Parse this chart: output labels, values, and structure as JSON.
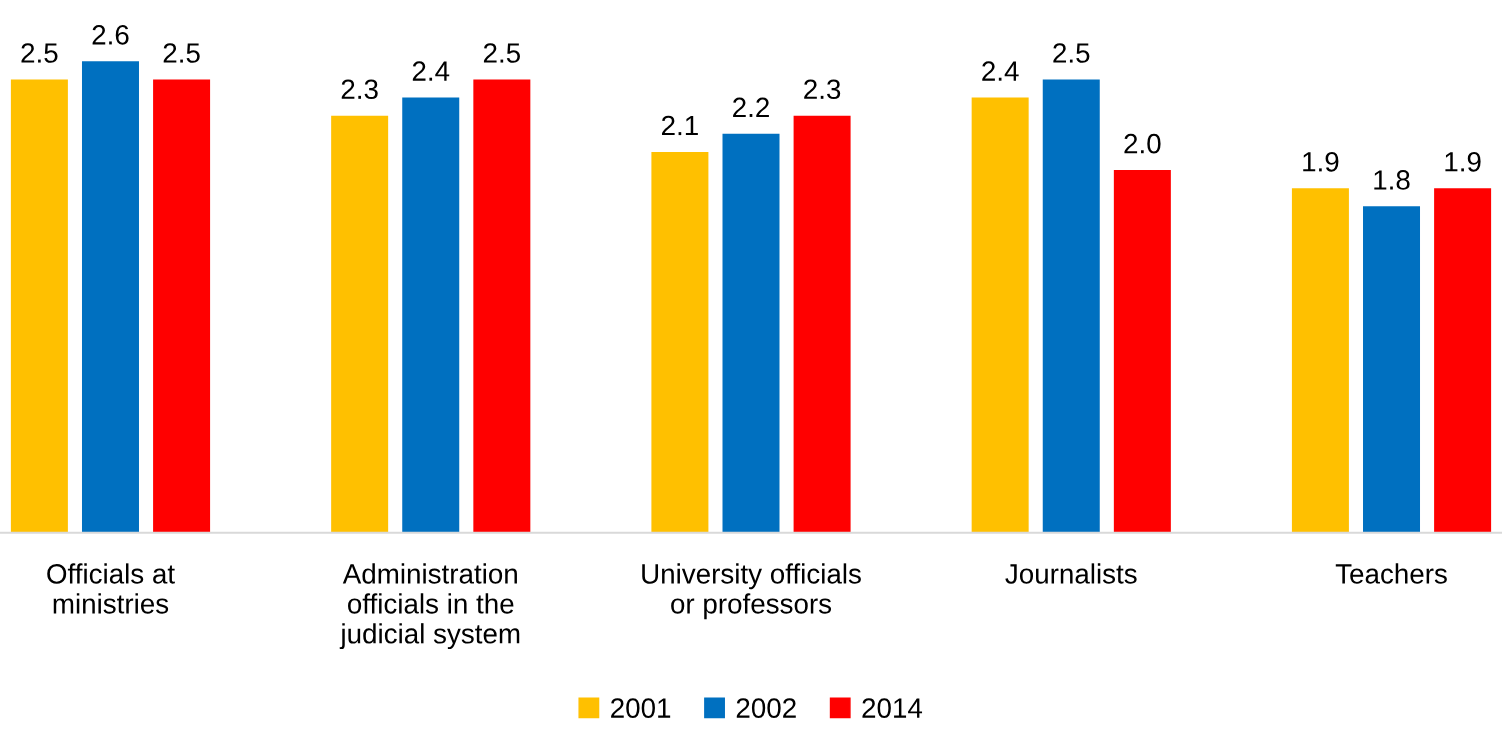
{
  "chart_data": {
    "type": "bar",
    "categories": [
      "Officials at\nministries",
      "Administration\nofficials in the\njudicial system",
      "University officials\nor professors",
      "Journalists",
      "Teachers"
    ],
    "series": [
      {
        "name": "2001",
        "color": "#ffc000",
        "values": [
          2.5,
          2.3,
          2.1,
          2.4,
          1.9
        ],
        "value_labels": [
          "2.5",
          "2.3",
          "2.1",
          "2.4",
          "1.9"
        ]
      },
      {
        "name": "2002",
        "color": "#0070c0",
        "values": [
          2.6,
          2.4,
          2.2,
          2.5,
          1.8
        ],
        "value_labels": [
          "2.6",
          "2.4",
          "2.2",
          "2.5",
          "1.8"
        ]
      },
      {
        "name": "2014",
        "color": "#ff0000",
        "values": [
          2.5,
          2.5,
          2.3,
          2.0,
          1.9
        ],
        "value_labels": [
          "2.5",
          "2.5",
          "2.3",
          "2.0",
          "1.9"
        ]
      }
    ],
    "legend": "bottom"
  }
}
